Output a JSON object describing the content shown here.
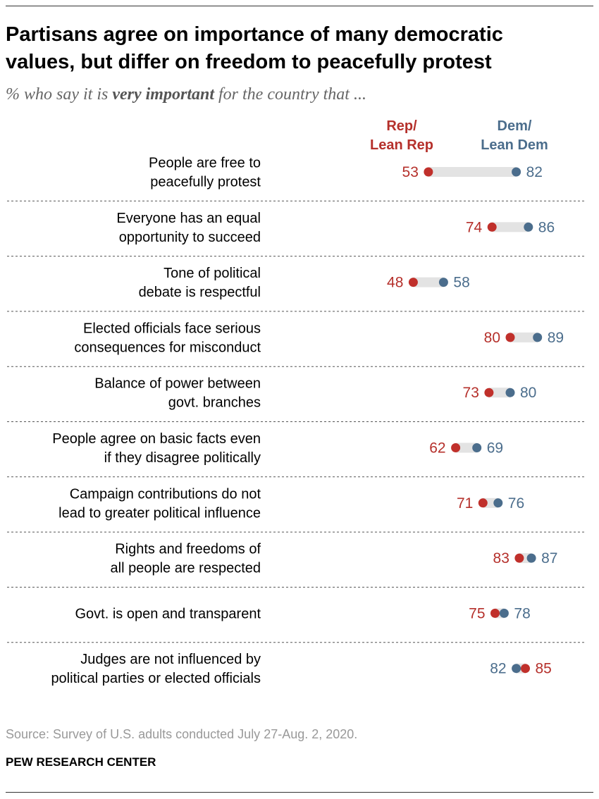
{
  "header": {
    "title_line1": "Partisans agree on importance of many democratic",
    "title_line2": "values, but differ on freedom to peacefully protest",
    "subtitle_pre": "% who say it is ",
    "subtitle_bold": "very important",
    "subtitle_post": " for the country that ..."
  },
  "legend": {
    "rep_line1": "Rep/",
    "rep_line2": "Lean Rep",
    "dem_line1": "Dem/",
    "dem_line2": "Lean Dem"
  },
  "footer": {
    "source": "Source: Survey of U.S. adults conducted July 27-Aug. 2, 2020.",
    "org": "PEW RESEARCH CENTER"
  },
  "colors": {
    "rep": "#c0302b",
    "dem": "#4b6d8c",
    "bar": "#e3e3e3",
    "divider": "#555555"
  },
  "chart_data": {
    "type": "dot",
    "title": "Partisans agree on importance of many democratic values, but differ on freedom to peacefully protest",
    "subtitle": "% who say it is very important for the country that ...",
    "xlim": [
      0,
      100
    ],
    "series": [
      {
        "name": "Rep/Lean Rep",
        "key": "rep"
      },
      {
        "name": "Dem/Lean Dem",
        "key": "dem"
      }
    ],
    "items": [
      {
        "label": [
          "People are free to",
          "peacefully protest"
        ],
        "rep": 53,
        "dem": 82
      },
      {
        "label": [
          "Everyone has an equal",
          "opportunity to succeed"
        ],
        "rep": 74,
        "dem": 86
      },
      {
        "label": [
          "Tone of political",
          "debate is respectful"
        ],
        "rep": 48,
        "dem": 58
      },
      {
        "label": [
          "Elected officials face serious",
          "consequences for misconduct"
        ],
        "rep": 80,
        "dem": 89
      },
      {
        "label": [
          "Balance of power between",
          "govt. branches"
        ],
        "rep": 73,
        "dem": 80
      },
      {
        "label": [
          "People agree on basic facts even",
          "if they disagree politically"
        ],
        "rep": 62,
        "dem": 69
      },
      {
        "label": [
          "Campaign contributions do not",
          "lead to greater political influence"
        ],
        "rep": 71,
        "dem": 76
      },
      {
        "label": [
          "Rights and freedoms of",
          "all people are respected"
        ],
        "rep": 83,
        "dem": 87
      },
      {
        "label": [
          "Govt. is open and transparent"
        ],
        "rep": 75,
        "dem": 78
      },
      {
        "label": [
          "Judges are not influenced by",
          "political parties or elected officials"
        ],
        "rep": 85,
        "dem": 82
      }
    ]
  }
}
